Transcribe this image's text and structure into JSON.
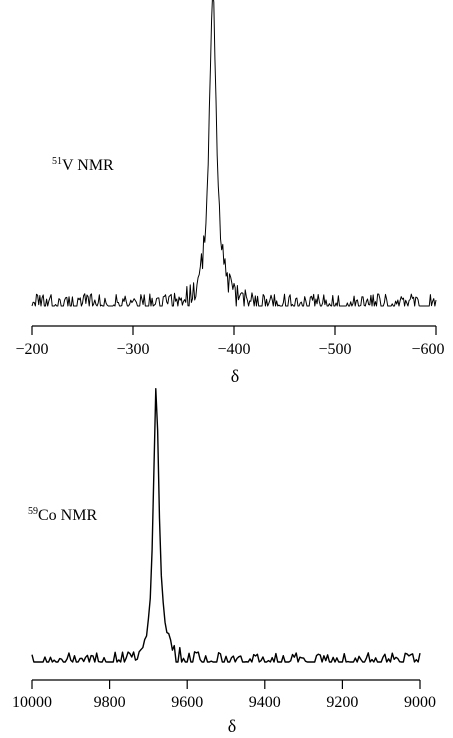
{
  "chart_data": [
    {
      "type": "line",
      "panel_label": {
        "superscript": "51",
        "text": "V NMR"
      },
      "xlabel": "δ",
      "ylabel": "",
      "x_reversed": true,
      "xlim": [
        -200,
        -600
      ],
      "xticks": [
        -200,
        -300,
        -400,
        -500,
        -600
      ],
      "xtick_labels": [
        "−200",
        "−300",
        "−400",
        "−500",
        "−600"
      ],
      "y_axis_shown": false,
      "grid": false,
      "series": [
        {
          "peak": {
            "x": -379,
            "height": 1.0,
            "half_width": 4.5
          },
          "baseline_noise": 0.04,
          "points": 360,
          "color": "#000000"
        }
      ]
    },
    {
      "type": "line",
      "panel_label": {
        "superscript": "59",
        "text": "Co NMR"
      },
      "xlabel": "δ",
      "ylabel": "",
      "x_reversed": true,
      "xlim": [
        10000,
        9000
      ],
      "xticks": [
        10000,
        9800,
        9600,
        9400,
        9200,
        9000
      ],
      "xtick_labels": [
        "10000",
        "9800",
        "9600",
        "9400",
        "9200",
        "9000"
      ],
      "y_axis_shown": false,
      "grid": false,
      "series": [
        {
          "peak": {
            "x": 9680,
            "height": 1.0,
            "half_width": 9
          },
          "baseline_noise": 0.035,
          "points": 210,
          "color": "#000000"
        }
      ]
    }
  ]
}
